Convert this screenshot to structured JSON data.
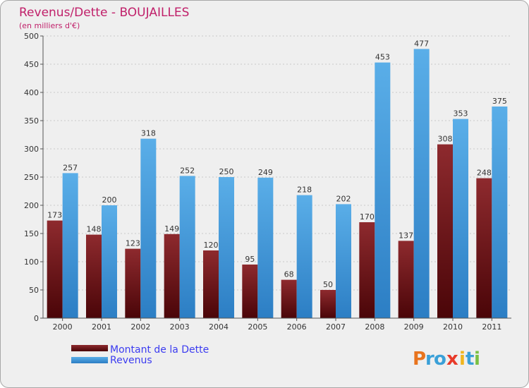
{
  "chart_data": {
    "type": "bar",
    "title": "Revenus/Dette - BOUJAILLES",
    "subtitle": "(en milliers d'€)",
    "xlabel": "",
    "ylabel": "",
    "ylim": [
      0,
      500
    ],
    "yticks": [
      "0",
      "50",
      "100",
      "150",
      "200",
      "250",
      "300",
      "350",
      "400",
      "450",
      "500"
    ],
    "grid": true,
    "legend_position": "bottom-left",
    "categories": [
      "2000",
      "2001",
      "2002",
      "2003",
      "2004",
      "2005",
      "2006",
      "2007",
      "2008",
      "2009",
      "2010",
      "2011"
    ],
    "series": [
      {
        "name": "Montant de la Dette",
        "color": "#7a1a1e",
        "values": [
          173,
          148,
          123,
          149,
          120,
          95,
          68,
          50,
          170,
          137,
          308,
          248
        ]
      },
      {
        "name": "Revenus",
        "color": "#4a9fe0",
        "values": [
          257,
          200,
          318,
          252,
          250,
          249,
          218,
          202,
          453,
          477,
          353,
          375
        ]
      }
    ]
  },
  "logo": {
    "letters": [
      "P",
      "r",
      "o",
      "x",
      "i",
      "t",
      "i"
    ]
  }
}
